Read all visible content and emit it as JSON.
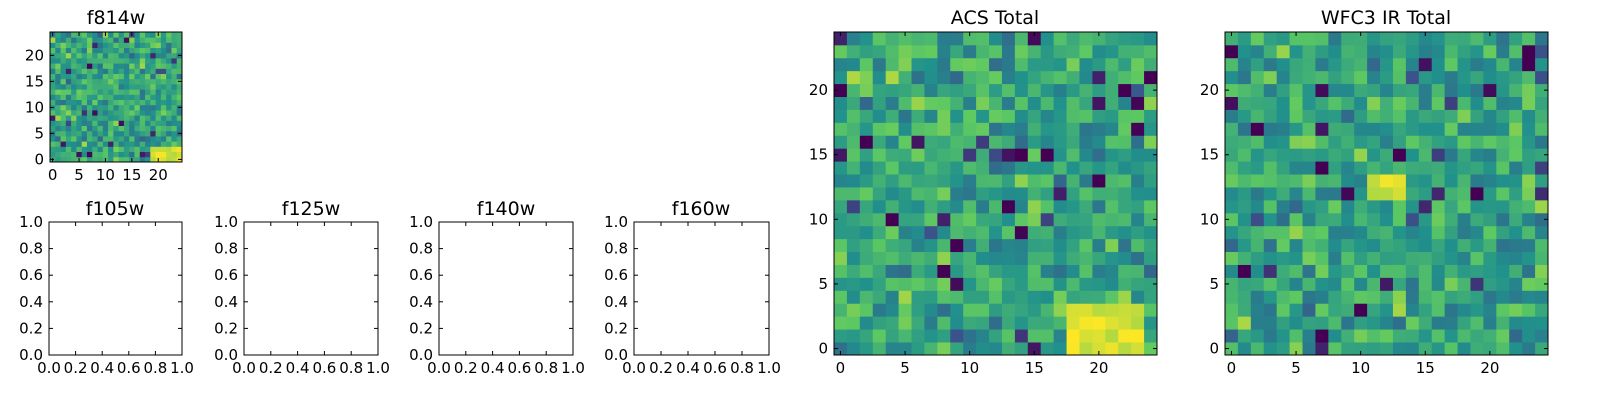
{
  "figure": {
    "colormap": [
      "#440154",
      "#3b528b",
      "#21918c",
      "#5ec962",
      "#fde725"
    ],
    "empty_tick_labels": [
      "0.0",
      "0.2",
      "0.4",
      "0.6",
      "0.8",
      "1.0"
    ]
  },
  "chart_data": [
    {
      "type": "heatmap",
      "title": "f814w",
      "grid_size": [
        25,
        25
      ],
      "xlim": [
        0,
        25
      ],
      "ylim": [
        0,
        25
      ],
      "xticks": [
        "0",
        "5",
        "10",
        "15",
        "20"
      ],
      "yticks": [
        "0",
        "5",
        "10",
        "15",
        "20"
      ],
      "values_seed": 814,
      "bright_region": {
        "x": [
          19,
          24
        ],
        "y": [
          0,
          2
        ]
      },
      "value_range": [
        0,
        1
      ],
      "grid": false
    },
    {
      "type": "heatmap",
      "title": "f105w",
      "xlim": [
        0,
        1
      ],
      "ylim": [
        0,
        1
      ],
      "xticks": [
        "0.0",
        "0.2",
        "0.4",
        "0.6",
        "0.8",
        "1.0"
      ],
      "yticks": [
        "0.0",
        "0.2",
        "0.4",
        "0.6",
        "0.8",
        "1.0"
      ],
      "empty": true
    },
    {
      "type": "heatmap",
      "title": "f125w",
      "xlim": [
        0,
        1
      ],
      "ylim": [
        0,
        1
      ],
      "xticks": [
        "0.0",
        "0.2",
        "0.4",
        "0.6",
        "0.8",
        "1.0"
      ],
      "yticks": [
        "0.0",
        "0.2",
        "0.4",
        "0.6",
        "0.8",
        "1.0"
      ],
      "empty": true
    },
    {
      "type": "heatmap",
      "title": "f140w",
      "xlim": [
        0,
        1
      ],
      "ylim": [
        0,
        1
      ],
      "xticks": [
        "0.0",
        "0.2",
        "0.4",
        "0.6",
        "0.8",
        "1.0"
      ],
      "yticks": [
        "0.0",
        "0.2",
        "0.4",
        "0.6",
        "0.8",
        "1.0"
      ],
      "empty": true
    },
    {
      "type": "heatmap",
      "title": "f160w",
      "xlim": [
        0,
        1
      ],
      "ylim": [
        0,
        1
      ],
      "xticks": [
        "0.0",
        "0.2",
        "0.4",
        "0.6",
        "0.8",
        "1.0"
      ],
      "yticks": [
        "0.0",
        "0.2",
        "0.4",
        "0.6",
        "0.8",
        "1.0"
      ],
      "empty": true
    },
    {
      "type": "heatmap",
      "title": "ACS Total",
      "grid_size": [
        25,
        25
      ],
      "xlim": [
        0,
        25
      ],
      "ylim": [
        0,
        25
      ],
      "xticks": [
        "0",
        "5",
        "10",
        "15",
        "20"
      ],
      "yticks": [
        "0",
        "5",
        "10",
        "15",
        "20"
      ],
      "values_seed": 11,
      "bright_region": {
        "x": [
          18,
          23
        ],
        "y": [
          0,
          3
        ]
      },
      "dark_cells": [
        [
          0,
          20
        ],
        [
          2,
          16
        ],
        [
          4,
          10
        ],
        [
          9,
          8
        ],
        [
          13,
          11
        ],
        [
          14,
          15
        ],
        [
          16,
          15
        ],
        [
          20,
          13
        ],
        [
          22,
          20
        ],
        [
          24,
          21
        ],
        [
          8,
          6
        ]
      ],
      "value_range": [
        0,
        1
      ],
      "grid": false
    },
    {
      "type": "heatmap",
      "title": "WFC3 IR Total",
      "grid_size": [
        25,
        25
      ],
      "xlim": [
        0,
        25
      ],
      "ylim": [
        0,
        25
      ],
      "xticks": [
        "0",
        "5",
        "10",
        "15",
        "20"
      ],
      "yticks": [
        "0",
        "5",
        "10",
        "15",
        "20"
      ],
      "values_seed": 3,
      "bright_region": {
        "x": [
          11,
          13
        ],
        "y": [
          12,
          13
        ]
      },
      "dark_cells": [
        [
          0,
          23
        ],
        [
          2,
          17
        ],
        [
          1,
          6
        ],
        [
          7,
          14
        ],
        [
          13,
          15
        ],
        [
          19,
          12
        ],
        [
          23,
          22
        ],
        [
          23,
          23
        ],
        [
          10,
          3
        ],
        [
          7,
          1
        ]
      ],
      "value_range": [
        0,
        1
      ],
      "grid": false
    }
  ]
}
